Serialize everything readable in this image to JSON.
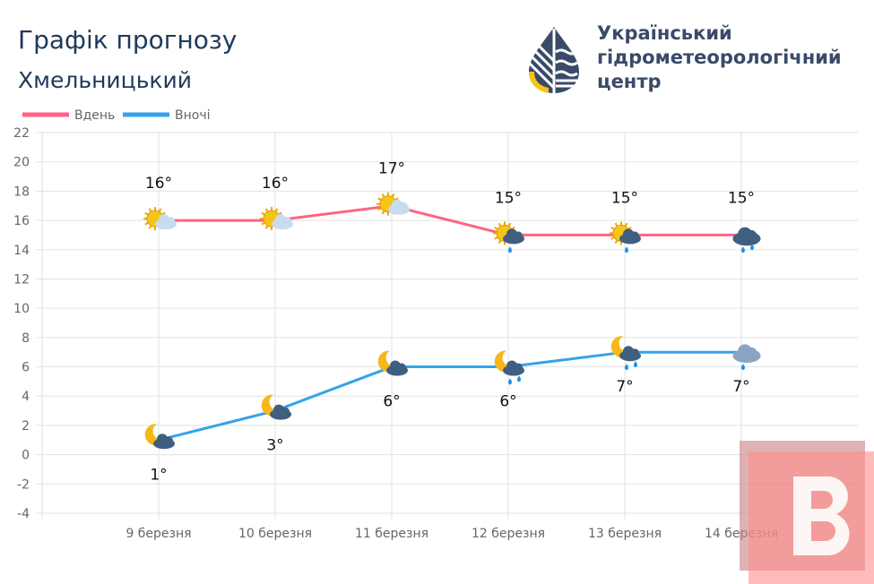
{
  "header": {
    "title": "Графік прогнозу",
    "city": "Хмельницький"
  },
  "organization": {
    "line1": "Український",
    "line2": "гідрометеорологічний",
    "line3": "центр"
  },
  "chart_data": {
    "type": "line",
    "categories": [
      "9 березня",
      "10 березня",
      "11 березня",
      "12 березня",
      "13 березня",
      "14 березня"
    ],
    "series": [
      {
        "name": "Вдень",
        "color": "#ff6384",
        "values": [
          16,
          16,
          17,
          15,
          15,
          15
        ],
        "labels": [
          "16°",
          "16°",
          "17°",
          "15°",
          "15°",
          "15°"
        ],
        "icons": [
          "partly-cloudy-day-icon",
          "partly-cloudy-day-icon",
          "partly-cloudy-day-icon",
          "sun-cloud-rain-icon",
          "sun-cloud-rain-icon",
          "heavy-rain-cloud-icon"
        ]
      },
      {
        "name": "Вночі",
        "color": "#36a2eb",
        "values": [
          1,
          3,
          6,
          6,
          7,
          7
        ],
        "labels": [
          "1°",
          "3°",
          "6°",
          "6°",
          "7°",
          "7°"
        ],
        "icons": [
          "moon-cloud-icon",
          "moon-cloud-icon",
          "moon-cloud-icon",
          "moon-cloud-rain-icon",
          "moon-cloud-rain-icon",
          "cloud-rain-icon"
        ]
      }
    ],
    "ylim": [
      -4,
      22
    ],
    "yticks": [
      "22",
      "20",
      "18",
      "16",
      "14",
      "12",
      "10",
      "8",
      "6",
      "4",
      "2",
      "0",
      "-2",
      "-4"
    ],
    "grid": true,
    "legend": "top-left"
  }
}
